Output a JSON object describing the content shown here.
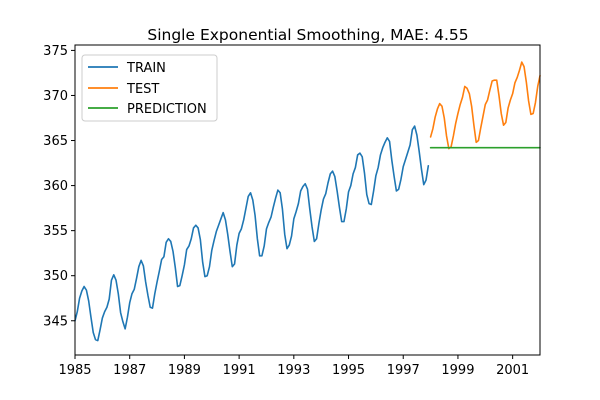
{
  "chart_data": {
    "type": "line",
    "title": "Single Exponential Smoothing, MAE: 4.55",
    "xlabel": "",
    "ylabel": "",
    "xlim": [
      1985.0,
      2002.0
    ],
    "ylim": [
      341.2,
      375.6
    ],
    "xticks": [
      1985,
      1987,
      1989,
      1991,
      1993,
      1995,
      1997,
      1999,
      2001
    ],
    "xtick_labels": [
      "1985",
      "1987",
      "1989",
      "1991",
      "1993",
      "1995",
      "1997",
      "1999",
      "2001"
    ],
    "yticks": [
      345,
      350,
      355,
      360,
      365,
      370,
      375
    ],
    "ytick_labels": [
      "345",
      "350",
      "355",
      "360",
      "365",
      "370",
      "375"
    ],
    "grid": false,
    "legend_position": "upper-left",
    "series": [
      {
        "name": "TRAIN",
        "color": "#1f77b4",
        "x": [
          1985.0,
          1985.083,
          1985.167,
          1985.25,
          1985.333,
          1985.417,
          1985.5,
          1985.583,
          1985.667,
          1985.75,
          1985.833,
          1985.917,
          1986.0,
          1986.083,
          1986.167,
          1986.25,
          1986.333,
          1986.417,
          1986.5,
          1986.583,
          1986.667,
          1986.75,
          1986.833,
          1986.917,
          1987.0,
          1987.083,
          1987.167,
          1987.25,
          1987.333,
          1987.417,
          1987.5,
          1987.583,
          1987.667,
          1987.75,
          1987.833,
          1987.917,
          1988.0,
          1988.083,
          1988.167,
          1988.25,
          1988.333,
          1988.417,
          1988.5,
          1988.583,
          1988.667,
          1988.75,
          1988.833,
          1988.917,
          1989.0,
          1989.083,
          1989.167,
          1989.25,
          1989.333,
          1989.417,
          1989.5,
          1989.583,
          1989.667,
          1989.75,
          1989.833,
          1989.917,
          1990.0,
          1990.083,
          1990.167,
          1990.25,
          1990.333,
          1990.417,
          1990.5,
          1990.583,
          1990.667,
          1990.75,
          1990.833,
          1990.917,
          1991.0,
          1991.083,
          1991.167,
          1991.25,
          1991.333,
          1991.417,
          1991.5,
          1991.583,
          1991.667,
          1991.75,
          1991.833,
          1991.917,
          1992.0,
          1992.083,
          1992.167,
          1992.25,
          1992.333,
          1992.417,
          1992.5,
          1992.583,
          1992.667,
          1992.75,
          1992.833,
          1992.917,
          1993.0,
          1993.083,
          1993.167,
          1993.25,
          1993.333,
          1993.417,
          1993.5,
          1993.583,
          1993.667,
          1993.75,
          1993.833,
          1993.917,
          1994.0,
          1994.083,
          1994.167,
          1994.25,
          1994.333,
          1994.417,
          1994.5,
          1994.583,
          1994.667,
          1994.75,
          1994.833,
          1994.917,
          1995.0,
          1995.083,
          1995.167,
          1995.25,
          1995.333,
          1995.417,
          1995.5,
          1995.583,
          1995.667,
          1995.75,
          1995.833,
          1995.917,
          1996.0,
          1996.083,
          1996.167,
          1996.25,
          1996.333,
          1996.417,
          1996.5,
          1996.583,
          1996.667,
          1996.75,
          1996.833,
          1996.917,
          1997.0,
          1997.083,
          1997.167,
          1997.25,
          1997.333,
          1997.417,
          1997.5,
          1997.583,
          1997.667,
          1997.75,
          1997.833,
          1997.917
        ],
        "y": [
          345.0,
          346.0,
          347.5,
          348.3,
          348.8,
          348.4,
          347.2,
          345.4,
          343.7,
          342.9,
          342.8,
          344.0,
          345.3,
          346.0,
          346.5,
          347.4,
          349.5,
          350.1,
          349.5,
          348.0,
          345.9,
          344.9,
          344.1,
          345.4,
          347.0,
          348.0,
          348.5,
          349.7,
          351.0,
          351.7,
          351.1,
          349.3,
          347.8,
          346.5,
          346.4,
          348.0,
          349.3,
          350.5,
          351.8,
          352.1,
          353.7,
          354.1,
          353.8,
          352.7,
          350.9,
          348.8,
          348.9,
          350.0,
          351.2,
          352.9,
          353.3,
          354.1,
          355.3,
          355.6,
          355.3,
          354.0,
          351.5,
          349.9,
          350.0,
          351.0,
          352.8,
          353.9,
          354.9,
          355.6,
          356.3,
          357.0,
          356.2,
          354.6,
          352.7,
          351.0,
          351.3,
          353.4,
          354.7,
          355.2,
          356.2,
          357.5,
          358.8,
          359.2,
          358.4,
          356.7,
          354.1,
          352.2,
          352.2,
          353.3,
          355.2,
          355.9,
          356.5,
          357.6,
          358.6,
          359.5,
          359.2,
          357.4,
          354.6,
          353.0,
          353.4,
          354.4,
          356.3,
          357.1,
          358.0,
          359.4,
          359.9,
          360.2,
          359.6,
          357.4,
          355.4,
          353.8,
          354.1,
          355.8,
          357.3,
          358.5,
          359.1,
          360.3,
          361.3,
          361.6,
          361.0,
          359.4,
          357.6,
          356.0,
          356.0,
          357.4,
          359.3,
          360.0,
          361.3,
          362.0,
          363.4,
          363.6,
          363.2,
          361.4,
          359.0,
          358.0,
          357.9,
          359.4,
          361.1,
          362.0,
          363.4,
          364.2,
          364.8,
          365.3,
          364.9,
          362.8,
          361.0,
          359.4,
          359.6,
          360.7,
          362.1,
          362.9,
          363.7,
          364.5,
          366.2,
          366.6,
          365.6,
          363.8,
          361.8,
          360.1,
          360.6,
          362.2
        ]
      },
      {
        "name": "TEST",
        "color": "#ff7f0e",
        "x": [
          1998.0,
          1998.083,
          1998.167,
          1998.25,
          1998.333,
          1998.417,
          1998.5,
          1998.583,
          1998.667,
          1998.75,
          1998.833,
          1998.917,
          1999.0,
          1999.083,
          1999.167,
          1999.25,
          1999.333,
          1999.417,
          1999.5,
          1999.583,
          1999.667,
          1999.75,
          1999.833,
          1999.917,
          2000.0,
          2000.083,
          2000.167,
          2000.25,
          2000.333,
          2000.417,
          2000.5,
          2000.583,
          2000.667,
          2000.75,
          2000.833,
          2000.917,
          2001.0,
          2001.083,
          2001.167,
          2001.25,
          2001.333,
          2001.417,
          2001.5,
          2001.583,
          2001.667,
          2001.75,
          2001.833,
          2001.917,
          2002.0
        ],
        "y": [
          365.4,
          366.3,
          367.6,
          368.5,
          369.1,
          368.8,
          367.5,
          365.5,
          364.1,
          364.3,
          365.5,
          366.9,
          368.0,
          369.0,
          369.8,
          371.0,
          370.8,
          370.2,
          368.8,
          366.7,
          364.8,
          365.0,
          366.4,
          367.7,
          369.0,
          369.5,
          370.6,
          371.6,
          371.7,
          371.7,
          370.0,
          368.0,
          366.7,
          367.0,
          368.6,
          369.5,
          370.2,
          371.4,
          372.0,
          372.8,
          373.7,
          373.2,
          371.5,
          369.4,
          367.9,
          368.0,
          369.2,
          371.0,
          372.2
        ]
      },
      {
        "name": "PREDICTION",
        "color": "#2ca02c",
        "x": [
          1998.0,
          2002.0
        ],
        "y": [
          364.2,
          364.2
        ]
      }
    ]
  }
}
